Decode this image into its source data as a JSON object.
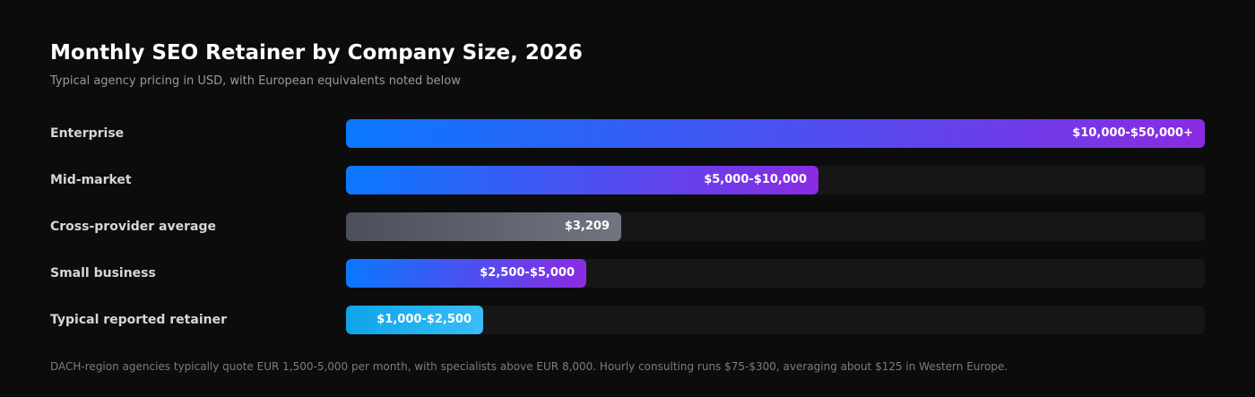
{
  "header": {
    "title": "Monthly SEO Retainer by Company Size, 2026",
    "subtitle": "Typical agency pricing in USD, with European equivalents noted below"
  },
  "footnote": "DACH-region agencies typically quote EUR 1,500-5,000 per month, with specialists above EUR 8,000. Hourly consulting runs $75-$300, averaging about $125 in Western Europe.",
  "chart_data": {
    "type": "bar",
    "orientation": "horizontal",
    "title": "Monthly SEO Retainer by Company Size, 2026",
    "subtitle": "Typical agency pricing in USD, with European equivalents noted below",
    "xlabel": "",
    "ylabel": "",
    "unit": "USD per month",
    "grid": false,
    "categories": [
      "Enterprise",
      "Mid-market",
      "Cross-provider average",
      "Small business",
      "Typical reported retainer"
    ],
    "values": [
      50000,
      10000,
      3209,
      2500,
      1000
    ],
    "range_values": [
      [
        10000,
        50000
      ],
      [
        5000,
        10000
      ],
      [
        3209,
        3209
      ],
      [
        2500,
        5000
      ],
      [
        1000,
        2500
      ]
    ],
    "value_labels": [
      "$10,000-$50,000+",
      "$5,000-$10,000",
      "$3,209",
      "$2,500-$5,000",
      "$1,000-$2,500"
    ],
    "bar_fill_fraction": [
      1.0,
      0.55,
      0.32,
      0.28,
      0.16
    ],
    "colors": [
      [
        "#0a78ff",
        "#8a2be2"
      ],
      [
        "#0a78ff",
        "#8a2be2"
      ],
      [
        "#4b4f5a",
        "#71757f"
      ],
      [
        "#0a78ff",
        "#8a2be2"
      ],
      [
        "#0ea5e9",
        "#38bdf8"
      ]
    ],
    "track_color": "#161616",
    "background_color": "#0c0c0c"
  }
}
